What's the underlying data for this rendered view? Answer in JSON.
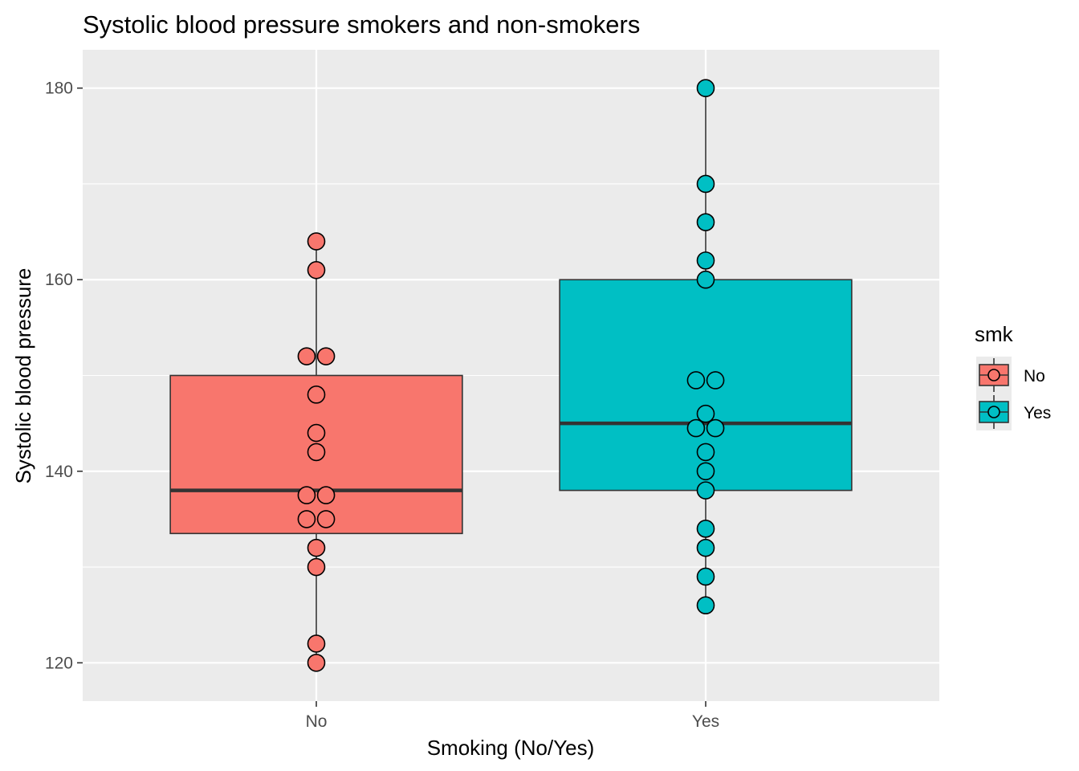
{
  "chart_data": {
    "type": "boxplot",
    "title": "Systolic blood pressure smokers and non-smokers",
    "xlabel": "Smoking (No/Yes)",
    "ylabel": "Systolic blood pressure",
    "categories": [
      "No",
      "Yes"
    ],
    "ylim": [
      116,
      184
    ],
    "yticks": [
      120,
      140,
      160,
      180
    ],
    "grid": true,
    "legend": {
      "title": "smk",
      "placement": "right",
      "entries": [
        "No",
        "Yes"
      ]
    },
    "colors": {
      "No": "#F8766D",
      "Yes": "#00BFC4"
    },
    "series": [
      {
        "name": "No",
        "box": {
          "lower_whisker": 120,
          "q1": 133.5,
          "median": 138,
          "q3": 150,
          "upper_whisker": 164
        },
        "points": [
          120,
          122,
          130,
          132,
          135,
          135,
          137.5,
          137.5,
          142,
          144,
          148,
          152,
          152,
          161,
          164
        ]
      },
      {
        "name": "Yes",
        "box": {
          "lower_whisker": 126,
          "q1": 138,
          "median": 145,
          "q3": 160,
          "upper_whisker": 180
        },
        "points": [
          126,
          129,
          132,
          134,
          138,
          140,
          142,
          144.5,
          144.5,
          146,
          149.5,
          149.5,
          160,
          162,
          166,
          170,
          180
        ]
      }
    ]
  }
}
